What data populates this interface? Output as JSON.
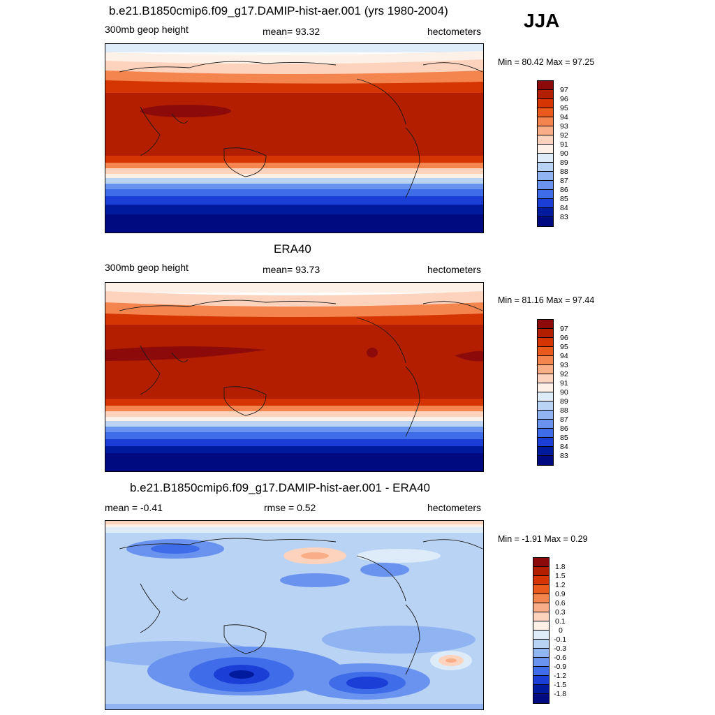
{
  "season": "JJA",
  "panels": [
    {
      "title": "b.e21.B1850cmip6.f09_g17.DAMIP-hist-aer.001 (yrs 1980-2004)",
      "left_label": "300mb geop height",
      "center_label": "mean=  93.32",
      "right_label": "hectometers",
      "minmax": "Min =  80.42 Max =  97.25",
      "levels": [
        "97",
        "96",
        "95",
        "94",
        "93",
        "92",
        "91",
        "90",
        "89",
        "88",
        "87",
        "86",
        "85",
        "84",
        "83"
      ]
    },
    {
      "title": "ERA40",
      "left_label": "300mb geop height",
      "center_label": "mean=  93.73",
      "right_label": "hectometers",
      "minmax": "Min =  81.16 Max =  97.44",
      "levels": [
        "97",
        "96",
        "95",
        "94",
        "93",
        "92",
        "91",
        "90",
        "89",
        "88",
        "87",
        "86",
        "85",
        "84",
        "83"
      ]
    },
    {
      "title": "b.e21.B1850cmip6.f09_g17.DAMIP-hist-aer.001 - ERA40",
      "left_label": "mean =  -0.41",
      "center_label": "rmse =   0.52",
      "right_label": "hectometers",
      "minmax": "Min =  -1.91 Max =   0.29",
      "levels": [
        "1.8",
        "1.5",
        "1.2",
        "0.9",
        "0.6",
        "0.3",
        "0.1",
        "0",
        "-0.1",
        "-0.3",
        "-0.6",
        "-0.9",
        "-1.2",
        "-1.5",
        "-1.8"
      ]
    }
  ],
  "colors": {
    "palette": [
      "#8c0a0a",
      "#b31e00",
      "#d43502",
      "#ea5a1c",
      "#f5854f",
      "#faae87",
      "#fdd3bd",
      "#fdf0e6",
      "#deecfa",
      "#b9d3f5",
      "#90b4f2",
      "#6a93ef",
      "#3f6de9",
      "#1a3ed6",
      "#001a9e",
      "#000a80"
    ]
  }
}
